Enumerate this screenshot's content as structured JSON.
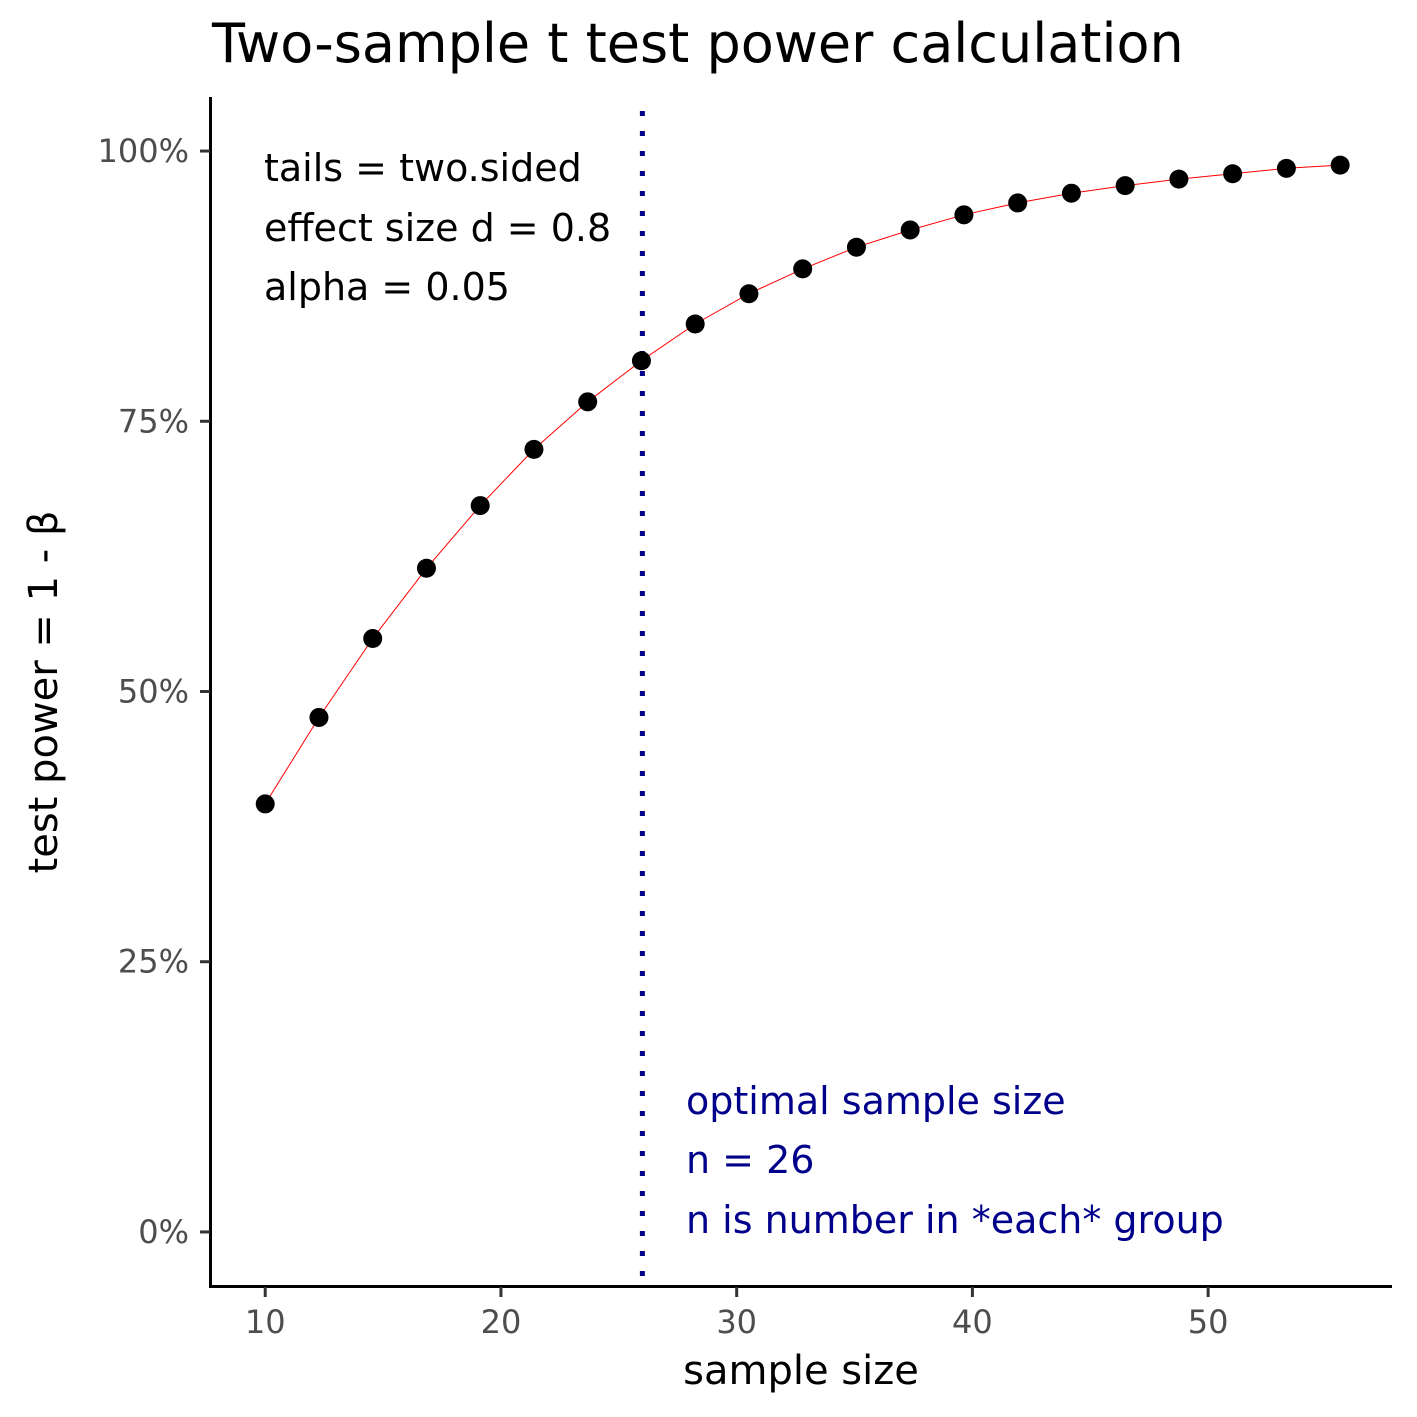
{
  "chart_data": {
    "type": "line",
    "title": "Two-sample t test power calculation",
    "xlabel": "sample size",
    "ylabel": "test power = 1 - β",
    "xlim": [
      7.7,
      57.8
    ],
    "ylim": [
      -5,
      105
    ],
    "x_ticks": [
      10,
      20,
      30,
      40,
      50
    ],
    "x_tick_labels": [
      "10",
      "20",
      "30",
      "40",
      "50"
    ],
    "y_ticks": [
      0,
      25,
      50,
      75,
      100
    ],
    "y_tick_labels": [
      "0%",
      "25%",
      "50%",
      "75%",
      "100%"
    ],
    "grid": false,
    "series": [
      {
        "x": [
          10,
          12.28,
          14.56,
          16.84,
          19.12,
          21.4,
          23.68,
          25.96,
          28.24,
          30.52,
          32.8,
          35.08,
          37.36,
          39.64,
          41.92,
          44.2,
          46.48,
          48.76,
          51.04,
          53.32,
          55.6
        ],
        "values": [
          39.6,
          47.6,
          54.9,
          61.4,
          67.2,
          72.4,
          76.8,
          80.6,
          84.0,
          86.8,
          89.1,
          91.1,
          92.7,
          94.1,
          95.2,
          96.1,
          96.8,
          97.4,
          97.9,
          98.4,
          98.7
        ]
      }
    ],
    "vline": {
      "x": 26
    },
    "colors": {
      "line": "#ff0000",
      "points": "#000000",
      "vline": "#00008b",
      "annotation_left": "#000000",
      "annotation_right": "#00008b"
    },
    "annotations": {
      "params": [
        "tails = two.sided",
        "effect size d = 0.8",
        "alpha = 0.05"
      ],
      "optimal": [
        "optimal sample size",
        "n = 26",
        "n is number in *each* group"
      ]
    }
  }
}
